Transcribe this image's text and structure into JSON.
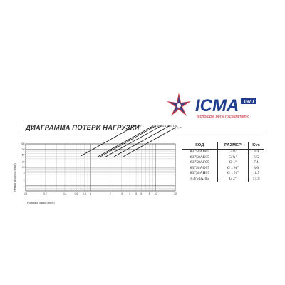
{
  "logo": {
    "brand": "ICMA",
    "badge": "1970",
    "tagline": "tecnologie per il riscaldamento",
    "colors": {
      "blue": "#1f3f8e",
      "red": "#c8242c"
    }
  },
  "heading": "ДИАГРАММА ПОТЕРИ НАГРУЗКИ",
  "table": {
    "headers": {
      "code": "КОД",
      "size": "РАЗМЕР",
      "kvs": "Kvs"
    },
    "rows": [
      {
        "code": "83750AD05",
        "size": "G ½\"",
        "kvs": "3.4"
      },
      {
        "code": "83750AE05",
        "size": "G ¾\"",
        "kvs": "6.5"
      },
      {
        "code": "83750AF05",
        "size": "G 1\"",
        "kvs": "7.1"
      },
      {
        "code": "83750AG05",
        "size": "G 1 ¼\"",
        "kvs": "8.6"
      },
      {
        "code": "83750AH05",
        "size": "G 1 ½\"",
        "kvs": "11.5"
      },
      {
        "code": "83750AJ05",
        "size": "G 2\"",
        "kvs": "15.9"
      }
    ]
  },
  "chart_data": {
    "type": "line",
    "title": "",
    "xlabel": "Portata di carico (m³/h)",
    "ylabel": "Perdita di carico (mbar)",
    "xscale": "log",
    "yscale": "log",
    "grid": true,
    "xlim": [
      0.1,
      20
    ],
    "ylim": [
      0.5,
      200
    ],
    "x_ticks": [
      {
        "v": 0.1,
        "label": "0.1"
      },
      {
        "v": 0.2,
        "label": "0.2"
      },
      {
        "v": 0.4,
        "label": "0.4"
      },
      {
        "v": 0.6,
        "label": "0.6"
      },
      {
        "v": 0.8,
        "label": "0.8"
      },
      {
        "v": 1,
        "label": "1"
      },
      {
        "v": 2,
        "label": "2"
      },
      {
        "v": 3,
        "label": "3"
      },
      {
        "v": 4,
        "label": "4"
      },
      {
        "v": 5,
        "label": "5"
      },
      {
        "v": 6,
        "label": "6"
      },
      {
        "v": 8,
        "label": "8"
      },
      {
        "v": 10,
        "label": "10"
      },
      {
        "v": 20,
        "label": "20"
      }
    ],
    "y_ticks": [
      {
        "v": 1,
        "label": "1"
      },
      {
        "v": 2,
        "label": "2"
      },
      {
        "v": 5,
        "label": "5"
      },
      {
        "v": 10,
        "label": "10"
      },
      {
        "v": 20,
        "label": "20"
      },
      {
        "v": 50,
        "label": "50"
      },
      {
        "v": 100,
        "label": "100"
      },
      {
        "v": 200,
        "label": "200"
      }
    ],
    "series": [
      {
        "name": "G ½\"",
        "kvs": 3.4,
        "x": [
          0.7,
          4.8
        ]
      },
      {
        "name": "G ¾\"",
        "kvs": 6.5,
        "x": [
          1.3,
          9.0
        ]
      },
      {
        "name": "G 1\"",
        "kvs": 7.1,
        "x": [
          1.4,
          9.9
        ]
      },
      {
        "name": "G 1 ¼\"",
        "kvs": 8.6,
        "x": [
          1.7,
          12
        ]
      },
      {
        "name": "G 1 ½\"",
        "kvs": 11.5,
        "x": [
          2.3,
          16
        ]
      },
      {
        "name": "G 2\"",
        "kvs": 15.9,
        "x": [
          3.2,
          20
        ]
      }
    ]
  }
}
